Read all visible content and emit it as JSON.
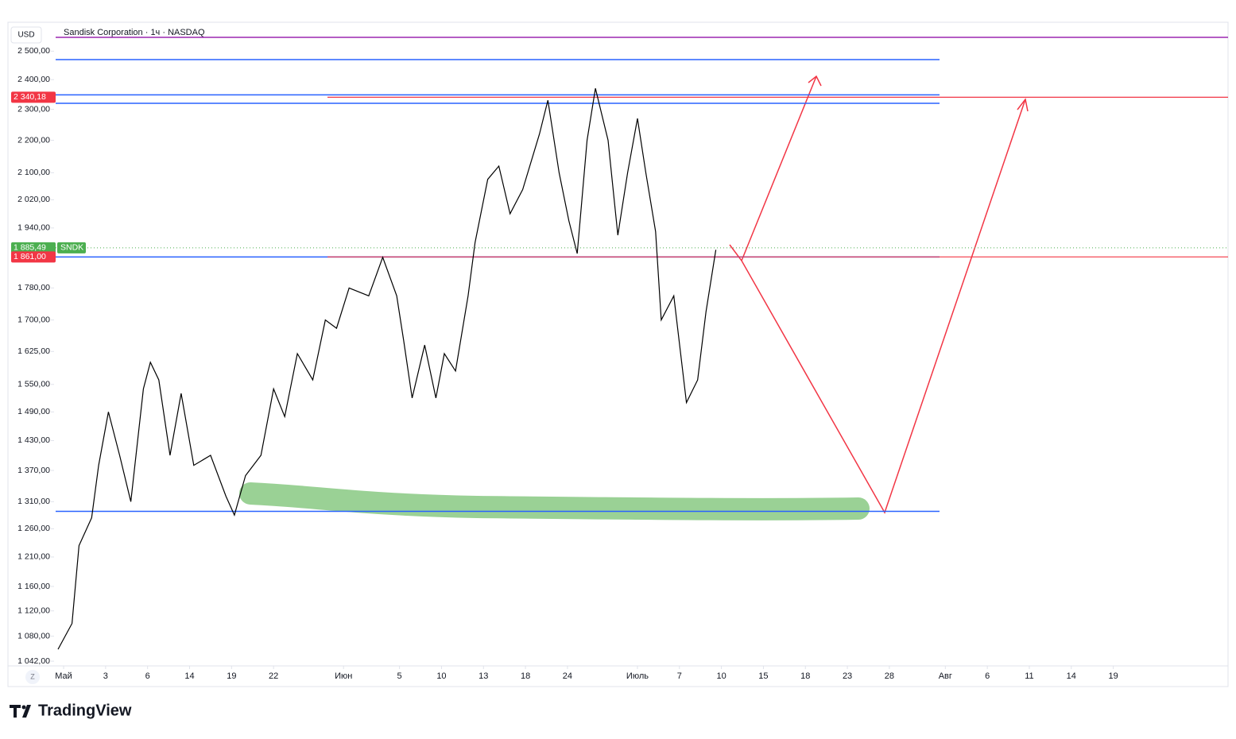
{
  "chart_data": {
    "type": "line",
    "title": "Sandisk Corporation · 1ч · NASDAQ",
    "currency": "USD",
    "ticker": "SNDK",
    "brand": "TradingView",
    "timezone_button": "Z",
    "log_scale": true,
    "color": "#000000",
    "ylim": [
      1035,
      2600
    ],
    "yticks": [
      {
        "value": 2500,
        "label": "2 500,00"
      },
      {
        "value": 2400,
        "label": "2 400,00"
      },
      {
        "value": 2300,
        "label": "2 300,00"
      },
      {
        "value": 2200,
        "label": "2 200,00"
      },
      {
        "value": 2100,
        "label": "2 100,00"
      },
      {
        "value": 2020,
        "label": "2 020,00"
      },
      {
        "value": 1940,
        "label": "1 940,00"
      },
      {
        "value": 1780,
        "label": "1 780,00"
      },
      {
        "value": 1700,
        "label": "1 700,00"
      },
      {
        "value": 1625,
        "label": "1 625,00"
      },
      {
        "value": 1550,
        "label": "1 550,00"
      },
      {
        "value": 1490,
        "label": "1 490,00"
      },
      {
        "value": 1430,
        "label": "1 430,00"
      },
      {
        "value": 1370,
        "label": "1 370,00"
      },
      {
        "value": 1310,
        "label": "1 310,00"
      },
      {
        "value": 1260,
        "label": "1 260,00"
      },
      {
        "value": 1210,
        "label": "1 210,00"
      },
      {
        "value": 1160,
        "label": "1 160,00"
      },
      {
        "value": 1120,
        "label": "1 120,00"
      },
      {
        "value": 1080,
        "label": "1 080,00"
      },
      {
        "value": 1042,
        "label": "1 042,00"
      }
    ],
    "xlim": [
      -0.57,
      83.2
    ],
    "xticks": [
      {
        "value": 0,
        "label": "Май"
      },
      3,
      6,
      {
        "value": 9,
        "label": "14"
      },
      {
        "value": 12,
        "label": "19"
      },
      {
        "value": 15,
        "label": "22"
      },
      {
        "value": 20,
        "label": "Июн"
      },
      {
        "value": 24,
        "label": "5"
      },
      {
        "value": 27,
        "label": "10"
      },
      {
        "value": 30,
        "label": "13"
      },
      {
        "value": 33,
        "label": "18"
      },
      {
        "value": 36,
        "label": "24"
      },
      {
        "value": 41,
        "label": "Июль"
      },
      {
        "value": 44,
        "label": "7"
      },
      {
        "value": 47,
        "label": "10"
      },
      {
        "value": 50,
        "label": "15"
      },
      {
        "value": 53,
        "label": "18"
      },
      {
        "value": 56,
        "label": "23"
      },
      {
        "value": 59,
        "label": "28"
      },
      {
        "value": 63,
        "label": "Авг"
      },
      {
        "value": 66,
        "label": "6"
      },
      {
        "value": 69,
        "label": "11"
      },
      {
        "value": 72,
        "label": "14"
      },
      {
        "value": 75,
        "label": "19"
      }
    ],
    "x": [
      -0.4,
      0.6,
      1.1,
      2.0,
      2.5,
      3.2,
      4.0,
      4.8,
      5.7,
      6.2,
      6.8,
      7.6,
      8.4,
      9.3,
      10.5,
      11.6,
      12.2,
      13.0,
      14.1,
      15.0,
      15.8,
      16.7,
      17.8,
      18.7,
      19.5,
      20.4,
      21.8,
      22.8,
      23.8,
      24.3,
      24.9,
      25.8,
      26.6,
      27.2,
      28.0,
      28.9,
      29.4,
      30.3,
      31.1,
      31.9,
      32.8,
      34.0,
      34.6,
      35.4,
      36.1,
      36.7,
      37.4,
      38.0,
      38.9,
      39.6,
      40.3,
      41.0,
      41.6,
      42.3,
      42.7,
      43.6,
      44.5,
      45.3,
      45.9,
      46.6
    ],
    "values": [
      1060,
      1100,
      1230,
      1280,
      1380,
      1490,
      1400,
      1310,
      1540,
      1600,
      1560,
      1400,
      1530,
      1380,
      1400,
      1320,
      1285,
      1360,
      1400,
      1540,
      1480,
      1620,
      1560,
      1700,
      1680,
      1780,
      1760,
      1860,
      1760,
      1650,
      1520,
      1640,
      1520,
      1620,
      1580,
      1760,
      1900,
      2080,
      2120,
      1980,
      2050,
      2220,
      2330,
      2100,
      1960,
      1870,
      2200,
      2370,
      2200,
      1920,
      2100,
      2270,
      2100,
      1930,
      1700,
      1760,
      1510,
      1560,
      1720,
      1880
    ],
    "levels": [
      {
        "value": 2550,
        "color": "#9c27b0",
        "kind": "ray"
      },
      {
        "value": 2470,
        "color": "#2962ff",
        "kind": "segment"
      },
      {
        "value": 2348,
        "color": "#2962ff",
        "kind": "segment"
      },
      {
        "value": 2320,
        "color": "#2962ff",
        "kind": "segment"
      },
      {
        "value": 1861,
        "color": "#2962ff",
        "kind": "segment"
      },
      {
        "value": 1292,
        "color": "#2962ff",
        "kind": "segment"
      }
    ],
    "price_labels": [
      {
        "value": 2340.18,
        "label": "2 340,18",
        "color": "#f23645"
      },
      {
        "value": 1885.49,
        "label": "1 885,49",
        "color": "#4caf50"
      },
      {
        "value": 1861,
        "label": "1 861,00",
        "color": "#f23645"
      }
    ]
  }
}
